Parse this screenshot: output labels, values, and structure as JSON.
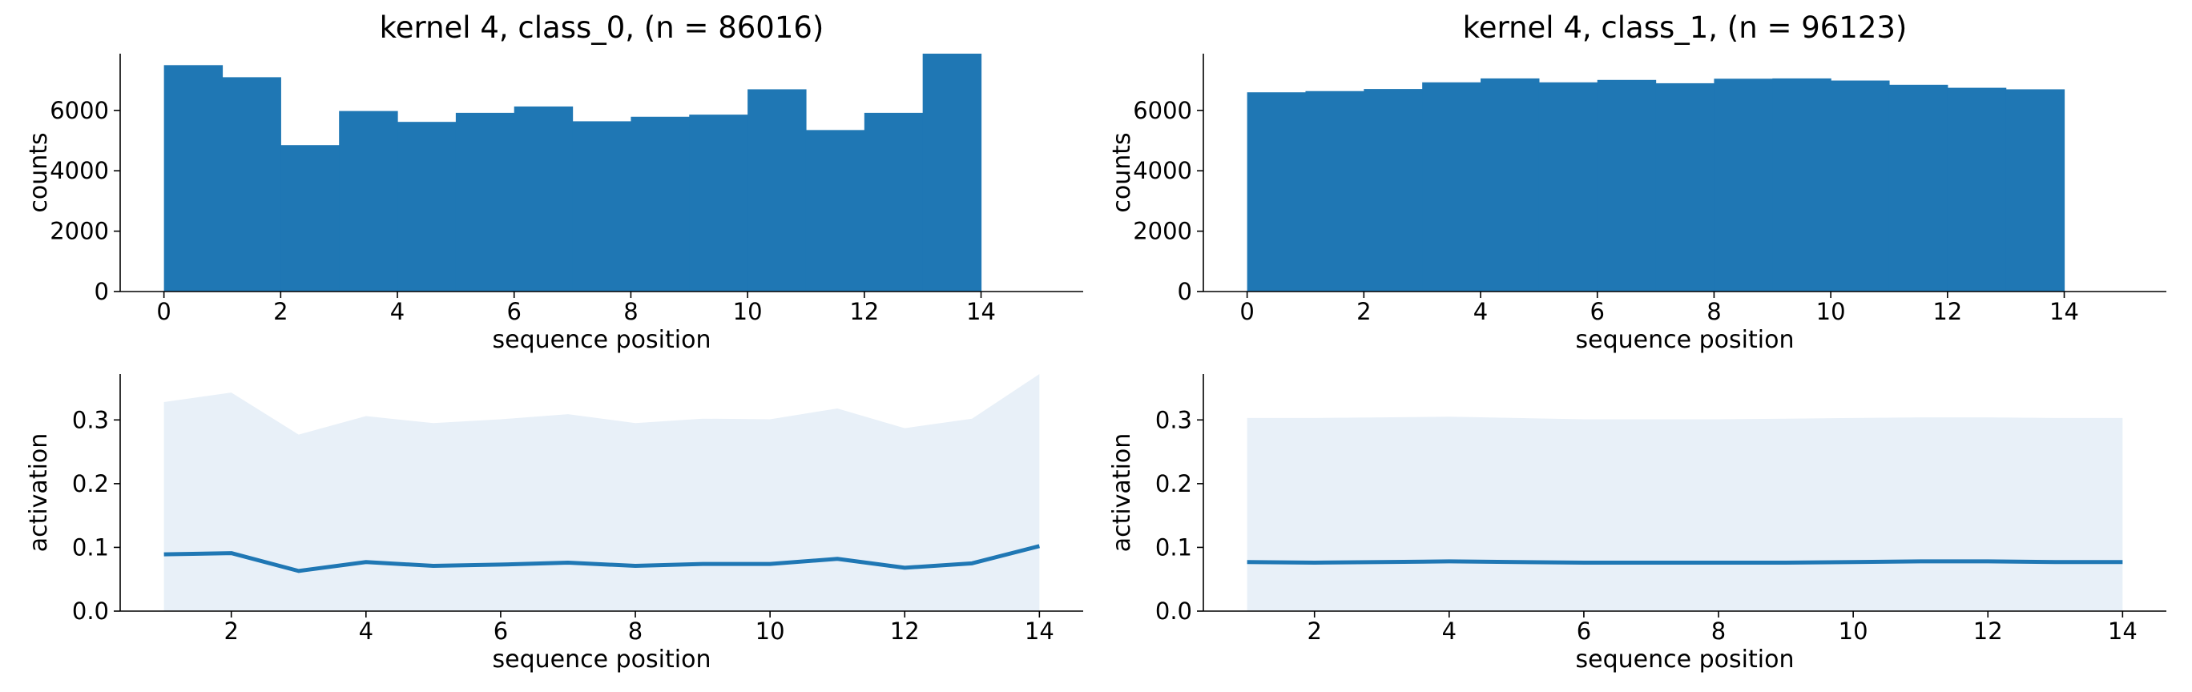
{
  "chart_data": [
    {
      "type": "bar",
      "title": "kernel 4, class_0, (n = 86016)",
      "xlabel": "sequence position",
      "ylabel": "counts",
      "bin_edges": [
        0,
        1,
        2,
        3,
        4,
        5,
        6,
        7,
        8,
        9,
        10,
        11,
        12,
        13,
        14
      ],
      "values": [
        7500,
        7100,
        4850,
        5980,
        5620,
        5920,
        6130,
        5640,
        5790,
        5860,
        6700,
        5350,
        5920,
        7880
      ],
      "xlim": [
        -0.75,
        15.75
      ],
      "ylim": [
        0,
        7880
      ],
      "xticks": [
        0,
        2,
        4,
        6,
        8,
        10,
        12,
        14
      ],
      "yticks": [
        0,
        2000,
        4000,
        6000
      ],
      "grid": false,
      "color": "#1f77b4"
    },
    {
      "type": "bar",
      "title": "kernel 4, class_1, (n = 96123)",
      "xlabel": "sequence position",
      "ylabel": "counts",
      "bin_edges": [
        0,
        1,
        2,
        3,
        4,
        5,
        6,
        7,
        8,
        9,
        10,
        11,
        12,
        13,
        14
      ],
      "values": [
        6600,
        6640,
        6710,
        6930,
        7060,
        6930,
        7010,
        6900,
        7050,
        7060,
        6990,
        6850,
        6750,
        6700
      ],
      "xlim": [
        -0.75,
        15.75
      ],
      "ylim": [
        0,
        7880
      ],
      "xticks": [
        0,
        2,
        4,
        6,
        8,
        10,
        12,
        14
      ],
      "yticks": [
        0,
        2000,
        4000,
        6000
      ],
      "grid": false,
      "color": "#1f77b4"
    },
    {
      "type": "area",
      "title": "",
      "xlabel": "sequence position",
      "ylabel": "activation",
      "x": [
        1,
        2,
        3,
        4,
        5,
        6,
        7,
        8,
        9,
        10,
        11,
        12,
        13,
        14
      ],
      "mean": [
        0.089,
        0.091,
        0.063,
        0.077,
        0.071,
        0.073,
        0.076,
        0.071,
        0.074,
        0.074,
        0.082,
        0.068,
        0.075,
        0.102
      ],
      "upper": [
        0.328,
        0.343,
        0.277,
        0.306,
        0.295,
        0.301,
        0.309,
        0.295,
        0.302,
        0.301,
        0.318,
        0.287,
        0.302,
        0.372
      ],
      "lower": [
        0,
        0,
        0,
        0,
        0,
        0,
        0,
        0,
        0,
        0,
        0,
        0,
        0,
        0
      ],
      "xlim": [
        0.35,
        14.65
      ],
      "ylim": [
        0,
        0.372
      ],
      "xticks": [
        2,
        4,
        6,
        8,
        10,
        12,
        14
      ],
      "yticks": [
        0.0,
        0.1,
        0.2,
        0.3
      ],
      "ytick_labels": [
        "0.0",
        "0.1",
        "0.2",
        "0.3"
      ],
      "grid": false,
      "color": "#1f77b4",
      "fill_color": "#e8f0f8"
    },
    {
      "type": "area",
      "title": "",
      "xlabel": "sequence position",
      "ylabel": "activation",
      "x": [
        1,
        2,
        3,
        4,
        5,
        6,
        7,
        8,
        9,
        10,
        11,
        12,
        13,
        14
      ],
      "mean": [
        0.077,
        0.076,
        0.077,
        0.078,
        0.077,
        0.076,
        0.076,
        0.076,
        0.076,
        0.077,
        0.078,
        0.078,
        0.077,
        0.077
      ],
      "upper": [
        0.303,
        0.303,
        0.304,
        0.305,
        0.303,
        0.301,
        0.301,
        0.301,
        0.302,
        0.303,
        0.304,
        0.304,
        0.303,
        0.303
      ],
      "lower": [
        0,
        0,
        0,
        0,
        0,
        0,
        0,
        0,
        0,
        0,
        0,
        0,
        0,
        0
      ],
      "xlim": [
        0.35,
        14.65
      ],
      "ylim": [
        0,
        0.372
      ],
      "xticks": [
        2,
        4,
        6,
        8,
        10,
        12,
        14
      ],
      "yticks": [
        0.0,
        0.1,
        0.2,
        0.3
      ],
      "ytick_labels": [
        "0.0",
        "0.1",
        "0.2",
        "0.3"
      ],
      "grid": false,
      "color": "#1f77b4",
      "fill_color": "#e8f0f8"
    }
  ]
}
